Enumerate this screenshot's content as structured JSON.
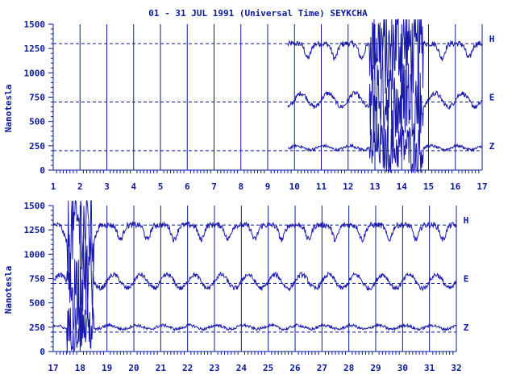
{
  "chart_data": [
    {
      "type": "line",
      "title": "01 - 31 JUL 1991 (Universal Time) SEYKCHA",
      "ylabel": "Nanotesla",
      "xlim": [
        1,
        17
      ],
      "ylim": [
        0,
        1500
      ],
      "yticks": [
        0,
        250,
        500,
        750,
        1000,
        1250,
        1500
      ],
      "xticks": [
        1,
        2,
        3,
        4,
        5,
        6,
        7,
        8,
        9,
        10,
        11,
        12,
        13,
        14,
        15,
        16,
        17
      ],
      "reference_lines": [
        {
          "label": "H",
          "value": 1300
        },
        {
          "label": "E",
          "value": 700
        },
        {
          "label": "Z",
          "value": 200
        }
      ],
      "grid": "vertical day lines",
      "data_start_day": 9.75,
      "series": [
        {
          "name": "H",
          "baseline": 1300
        },
        {
          "name": "E",
          "baseline": 720
        },
        {
          "name": "Z",
          "baseline": 230
        }
      ]
    },
    {
      "type": "line",
      "title": "",
      "ylabel": "Nanotesla",
      "xlim": [
        17,
        32
      ],
      "ylim": [
        0,
        1500
      ],
      "yticks": [
        0,
        250,
        500,
        750,
        1000,
        1250,
        1500
      ],
      "xticks": [
        17,
        18,
        19,
        20,
        21,
        22,
        23,
        24,
        25,
        26,
        27,
        28,
        29,
        30,
        31,
        32
      ],
      "reference_lines": [
        {
          "label": "H",
          "value": 1300
        },
        {
          "label": "E",
          "value": 700
        },
        {
          "label": "Z",
          "value": 200
        }
      ],
      "grid": "vertical day lines",
      "series": [
        {
          "name": "H",
          "baseline": 1300
        },
        {
          "name": "E",
          "baseline": 720
        },
        {
          "name": "Z",
          "baseline": 250
        }
      ]
    }
  ],
  "colors": {
    "ink": "#0b1a99",
    "trace": "#1a1aaa",
    "background": "#ffffff"
  }
}
